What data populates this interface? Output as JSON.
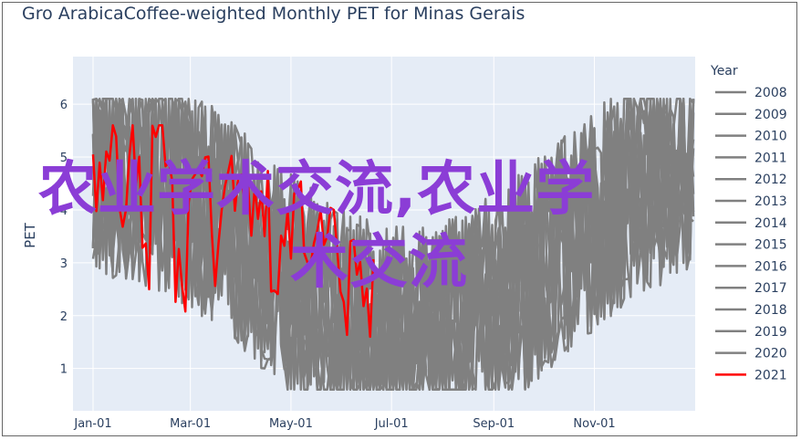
{
  "chart_data": {
    "type": "line",
    "title": "Gro ArabicaCoffee-weighted Monthly PET for Minas Gerais",
    "xlabel": "",
    "ylabel": "PET",
    "x_tick_labels": [
      "Jan-01",
      "Mar-01",
      "May-01",
      "Jul-01",
      "Sep-01",
      "Nov-01"
    ],
    "y_ticks": [
      1,
      2,
      3,
      4,
      5,
      6
    ],
    "ylim": [
      0.2,
      6.9
    ],
    "grid": true,
    "legend_title": "Year",
    "legend_position": "right",
    "series": [
      {
        "name": "2008",
        "color": "#808080"
      },
      {
        "name": "2009",
        "color": "#808080"
      },
      {
        "name": "2010",
        "color": "#808080"
      },
      {
        "name": "2011",
        "color": "#808080"
      },
      {
        "name": "2012",
        "color": "#808080"
      },
      {
        "name": "2013",
        "color": "#808080"
      },
      {
        "name": "2014",
        "color": "#808080"
      },
      {
        "name": "2015",
        "color": "#808080"
      },
      {
        "name": "2016",
        "color": "#808080"
      },
      {
        "name": "2017",
        "color": "#808080"
      },
      {
        "name": "2018",
        "color": "#808080"
      },
      {
        "name": "2019",
        "color": "#808080"
      },
      {
        "name": "2020",
        "color": "#808080"
      },
      {
        "name": "2021",
        "color": "#ff0000"
      }
    ],
    "red_2021_sample": {
      "x": [
        "Jan-01",
        "Jan-08",
        "Jan-15",
        "Jan-22",
        "Jan-29",
        "Feb-05",
        "Feb-12",
        "Feb-19",
        "Feb-26",
        "Mar-05",
        "Mar-12",
        "Mar-19",
        "Mar-26",
        "Apr-02",
        "Apr-09",
        "Apr-16",
        "Apr-23",
        "Apr-30",
        "May-07",
        "May-14",
        "May-21",
        "May-28",
        "Jun-04",
        "Jun-11",
        "Jun-18"
      ],
      "y": [
        4.4,
        5.4,
        4.2,
        5.0,
        3.1,
        5.3,
        4.9,
        2.6,
        4.1,
        5.0,
        2.9,
        4.6,
        4.0,
        3.8,
        4.2,
        2.8,
        3.3,
        3.9,
        2.7,
        3.6,
        3.5,
        2.3,
        2.9,
        1.9,
        2.4
      ]
    }
  },
  "watermark": {
    "line1": "农业学术交流,农业学",
    "line2": "术交流"
  }
}
